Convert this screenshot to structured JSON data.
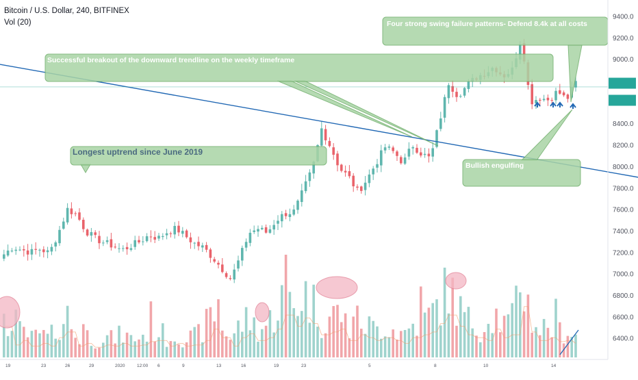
{
  "header": {
    "title": "Bitcoin / U.S. Dollar, 240, BITFINEX",
    "volume_label": "Vol (20)"
  },
  "annotations": {
    "swing_failure": "Four strong swing failure patterns-  Defend 8.4k at all costs",
    "breakout": "Successful breakout of the downward trendline on the weekly timeframe",
    "uptrend": "Longest uptrend since June 2019",
    "engulfing": "Bullish engulfing"
  },
  "colors": {
    "up": "#5fb6ae",
    "down": "#e9636b",
    "volume_up": "#9fd3cd",
    "volume_down": "#f1a6aa",
    "trendline": "#2168b4",
    "callout_fill": "#a9d4a5",
    "callout_stroke": "#6fae6b",
    "circle_fill": "#f4b6c3",
    "last_price_badge": "#26a69a",
    "volume_ma": "#f29b6b"
  },
  "chart_data": {
    "type": "candlestick",
    "title": "Bitcoin / U.S. Dollar, 240, BITFINEX",
    "ylim": [
      6200,
      9550
    ],
    "y_ticks": [
      "9400.0",
      "9200.0",
      "9000.0",
      "8800.0",
      "8600.0",
      "8400.0",
      "8200.0",
      "8000.0",
      "7800.0",
      "7600.0",
      "7400.0",
      "7200.0",
      "7000.0",
      "6800.0",
      "6600.0",
      "6400.0"
    ],
    "y_tick_values": [
      9400,
      9200,
      9000,
      8800,
      8600,
      8400,
      8200,
      8000,
      7800,
      7600,
      7400,
      7200,
      7000,
      6800,
      6600,
      6400
    ],
    "x_ticks": [
      "19",
      "23",
      "26",
      "29",
      "2020",
      "12:00",
      "6",
      "9",
      "13",
      "16",
      "19",
      "23",
      "5",
      "8",
      "10",
      "14"
    ],
    "close_path": [
      7180,
      7250,
      7220,
      7200,
      7230,
      7190,
      7380,
      7600,
      7550,
      7400,
      7330,
      7290,
      7260,
      7220,
      7260,
      7300,
      7360,
      7330,
      7390,
      7420,
      7350,
      7280,
      7240,
      7150,
      7050,
      6950,
      7150,
      7380,
      7420,
      7380,
      7500,
      7560,
      7580,
      7780,
      7980,
      8350,
      8180,
      7980,
      7900,
      7760,
      7880,
      8030,
      8180,
      8130,
      8030,
      8200,
      8120,
      8070,
      8420,
      8780,
      8660,
      8750,
      8830,
      8870,
      8930,
      8840,
      8900,
      9200,
      8600,
      8640,
      8620,
      8700,
      8620,
      8780
    ],
    "volume_path": [
      0.55,
      0.22,
      0.3,
      0.2,
      0.25,
      0.2,
      0.35,
      0.45,
      0.2,
      0.25,
      0.18,
      0.22,
      0.2,
      0.25,
      0.2,
      0.22,
      0.28,
      0.3,
      0.2,
      0.25,
      0.2,
      0.22,
      0.3,
      0.5,
      0.35,
      0.2,
      0.35,
      0.42,
      0.3,
      0.35,
      0.5,
      0.75,
      0.55,
      0.7,
      0.6,
      0.4,
      0.45,
      0.5,
      0.3,
      0.4,
      0.35,
      0.3,
      0.35,
      0.3,
      0.25,
      0.35,
      0.4,
      0.45,
      0.6,
      0.75,
      0.55,
      0.4,
      0.35,
      0.3,
      0.5,
      0.35,
      0.4,
      0.9,
      0.45,
      0.3,
      0.35,
      0.28,
      0.3,
      0.25
    ],
    "last_price": 8780,
    "price_line": 8740,
    "trendline": {
      "from": {
        "bar": 0,
        "price": 8950
      },
      "to": {
        "bar": 144,
        "price": 7930
      }
    },
    "callout_anchors": {
      "swing_failure": {
        "bar": 136,
        "price": 8780
      },
      "breakout": [
        {
          "bar": 96,
          "price": 8120
        },
        {
          "bar": 104,
          "price": 8100
        }
      ],
      "uptrend": {
        "bar": 20,
        "price": 7900
      },
      "engulfing": {
        "bar": 138,
        "price": 8560
      }
    },
    "arrows": [
      {
        "bar": 127,
        "price": 8500
      },
      {
        "bar": 131,
        "price": 8580
      },
      {
        "bar": 134,
        "price": 8580
      },
      {
        "bar": 137,
        "price": 8560
      }
    ],
    "highlights": [
      "volume spike 19",
      "volume spike 16",
      "volume spike 23",
      "volume spike 8"
    ]
  }
}
